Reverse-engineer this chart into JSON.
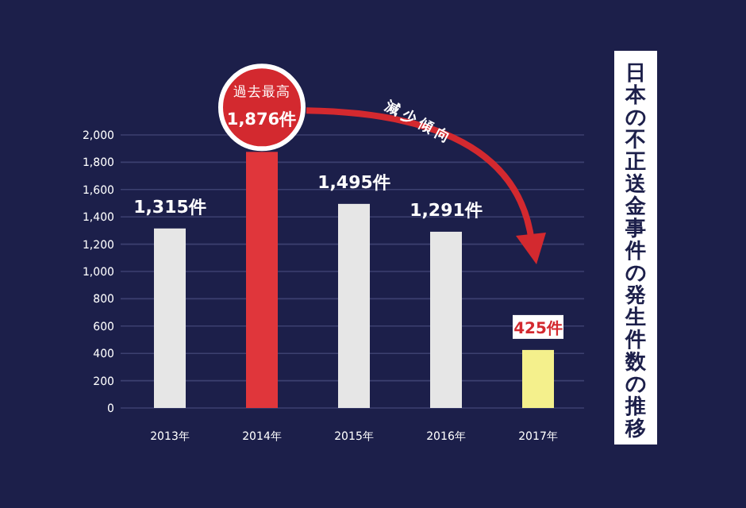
{
  "chart_data": {
    "type": "bar",
    "title": "日本の不正送金事件の発生件数の推移",
    "categories": [
      "2013年",
      "2014年",
      "2015年",
      "2016年",
      "2017年"
    ],
    "values": [
      1315,
      1876,
      1495,
      1291,
      425
    ],
    "colors": [
      "#e6e6e6",
      "#e0363b",
      "#e6e6e6",
      "#e6e6e6",
      "#f4f08c"
    ],
    "value_labels": [
      "1,315件",
      "1,876件",
      "1,495件",
      "1,291件",
      "425件"
    ],
    "annotations": [
      "過去最高",
      "減少傾向"
    ],
    "ylim": [
      0,
      2000
    ],
    "yticks": [
      0,
      200,
      400,
      600,
      800,
      {
        "value": 1000,
        "label": "1,000"
      },
      {
        "value": 1200,
        "label": "1,200"
      },
      {
        "value": 1400,
        "label": "1,400"
      },
      {
        "value": 1600,
        "label": "1,600"
      },
      {
        "value": 1800,
        "label": "1,800"
      },
      {
        "value": 2000,
        "label": "2,000"
      }
    ],
    "grid": "y"
  }
}
